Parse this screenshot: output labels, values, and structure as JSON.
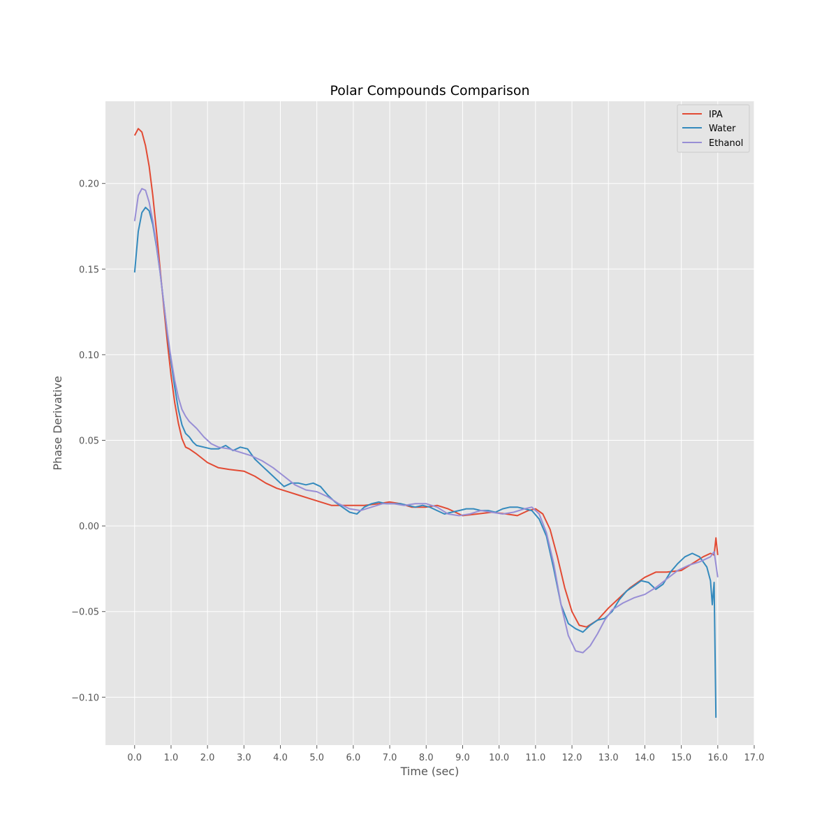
{
  "chart_data": {
    "type": "line",
    "title": "Polar Compounds Comparison",
    "xlabel": "Time (sec)",
    "ylabel": "Phase Derivative",
    "xlim": [
      -0.8,
      17.0
    ],
    "ylim": [
      -0.128,
      0.248
    ],
    "xticks": [
      0,
      1,
      2,
      3,
      4,
      5,
      6,
      7,
      8,
      9,
      10,
      11,
      12,
      13,
      14,
      15,
      16,
      17
    ],
    "xtick_labels": [
      "0.0",
      "1.0",
      "2.0",
      "3.0",
      "4.0",
      "5.0",
      "6.0",
      "7.0",
      "8.0",
      "9.0",
      "10.0",
      "11.0",
      "12.0",
      "13.0",
      "14.0",
      "15.0",
      "16.0",
      "17.0"
    ],
    "yticks": [
      -0.1,
      -0.05,
      0.0,
      0.05,
      0.1,
      0.15,
      0.2
    ],
    "ytick_labels": [
      "−0.10",
      "−0.05",
      "0.00",
      "0.05",
      "0.10",
      "0.15",
      "0.20"
    ],
    "grid": true,
    "legend_position": "top-right",
    "background": "#e5e5e5",
    "series": [
      {
        "name": "IPA",
        "color": "#e24a33",
        "x": [
          0.0,
          0.1,
          0.2,
          0.3,
          0.4,
          0.5,
          0.6,
          0.7,
          0.8,
          0.9,
          1.0,
          1.1,
          1.2,
          1.3,
          1.4,
          1.5,
          1.7,
          2.0,
          2.3,
          2.6,
          3.0,
          3.3,
          3.6,
          3.9,
          4.2,
          4.5,
          4.8,
          5.1,
          5.4,
          5.7,
          6.0,
          6.3,
          6.7,
          7.0,
          7.3,
          7.6,
          8.0,
          8.3,
          8.6,
          9.0,
          9.4,
          9.8,
          10.2,
          10.5,
          10.8,
          11.0,
          11.2,
          11.4,
          11.6,
          11.8,
          12.0,
          12.2,
          12.4,
          12.7,
          13.0,
          13.3,
          13.6,
          14.0,
          14.3,
          14.6,
          15.0,
          15.3,
          15.6,
          15.8,
          15.9,
          15.95,
          16.0
        ],
        "y": [
          0.228,
          0.232,
          0.23,
          0.222,
          0.21,
          0.193,
          0.172,
          0.15,
          0.128,
          0.107,
          0.088,
          0.072,
          0.06,
          0.051,
          0.046,
          0.045,
          0.042,
          0.037,
          0.034,
          0.033,
          0.032,
          0.029,
          0.025,
          0.022,
          0.02,
          0.018,
          0.016,
          0.014,
          0.012,
          0.012,
          0.012,
          0.012,
          0.013,
          0.014,
          0.013,
          0.011,
          0.011,
          0.012,
          0.01,
          0.006,
          0.007,
          0.008,
          0.007,
          0.006,
          0.009,
          0.01,
          0.007,
          -0.002,
          -0.018,
          -0.036,
          -0.05,
          -0.058,
          -0.059,
          -0.055,
          -0.048,
          -0.042,
          -0.036,
          -0.03,
          -0.027,
          -0.027,
          -0.026,
          -0.022,
          -0.018,
          -0.016,
          -0.017,
          -0.007,
          -0.017
        ]
      },
      {
        "name": "Water",
        "color": "#348abd",
        "x": [
          0.0,
          0.1,
          0.2,
          0.3,
          0.4,
          0.5,
          0.6,
          0.7,
          0.8,
          0.9,
          1.0,
          1.1,
          1.2,
          1.3,
          1.4,
          1.5,
          1.6,
          1.7,
          1.9,
          2.1,
          2.3,
          2.5,
          2.7,
          2.9,
          3.1,
          3.3,
          3.5,
          3.7,
          3.9,
          4.1,
          4.3,
          4.5,
          4.7,
          4.9,
          5.1,
          5.3,
          5.5,
          5.7,
          5.9,
          6.1,
          6.3,
          6.5,
          6.7,
          6.9,
          7.1,
          7.3,
          7.5,
          7.7,
          7.9,
          8.1,
          8.3,
          8.5,
          8.7,
          8.9,
          9.1,
          9.3,
          9.5,
          9.7,
          9.9,
          10.1,
          10.3,
          10.5,
          10.7,
          10.9,
          11.1,
          11.3,
          11.5,
          11.7,
          11.9,
          12.1,
          12.3,
          12.5,
          12.7,
          12.9,
          13.1,
          13.3,
          13.5,
          13.7,
          13.9,
          14.1,
          14.3,
          14.5,
          14.7,
          14.9,
          15.1,
          15.3,
          15.5,
          15.7,
          15.8,
          15.85,
          15.9,
          15.95
        ],
        "y": [
          0.148,
          0.172,
          0.183,
          0.186,
          0.184,
          0.176,
          0.163,
          0.148,
          0.13,
          0.112,
          0.096,
          0.081,
          0.068,
          0.059,
          0.054,
          0.052,
          0.049,
          0.047,
          0.046,
          0.045,
          0.045,
          0.047,
          0.044,
          0.046,
          0.045,
          0.039,
          0.035,
          0.031,
          0.027,
          0.023,
          0.025,
          0.025,
          0.024,
          0.025,
          0.023,
          0.018,
          0.014,
          0.011,
          0.008,
          0.007,
          0.011,
          0.013,
          0.014,
          0.013,
          0.013,
          0.013,
          0.012,
          0.011,
          0.012,
          0.011,
          0.009,
          0.007,
          0.008,
          0.009,
          0.01,
          0.01,
          0.009,
          0.009,
          0.008,
          0.01,
          0.011,
          0.011,
          0.01,
          0.009,
          0.004,
          -0.006,
          -0.025,
          -0.046,
          -0.057,
          -0.06,
          -0.062,
          -0.058,
          -0.055,
          -0.054,
          -0.05,
          -0.043,
          -0.038,
          -0.035,
          -0.032,
          -0.033,
          -0.037,
          -0.034,
          -0.027,
          -0.022,
          -0.018,
          -0.016,
          -0.018,
          -0.024,
          -0.032,
          -0.046,
          -0.033,
          -0.112
        ]
      },
      {
        "name": "Ethanol",
        "color": "#988ed5",
        "x": [
          0.0,
          0.1,
          0.2,
          0.3,
          0.4,
          0.5,
          0.6,
          0.7,
          0.8,
          0.9,
          1.0,
          1.1,
          1.2,
          1.3,
          1.4,
          1.5,
          1.6,
          1.7,
          1.9,
          2.1,
          2.3,
          2.6,
          2.9,
          3.2,
          3.5,
          3.8,
          4.1,
          4.4,
          4.7,
          5.0,
          5.3,
          5.6,
          5.9,
          6.2,
          6.5,
          6.8,
          7.1,
          7.4,
          7.7,
          8.0,
          8.3,
          8.6,
          8.9,
          9.2,
          9.5,
          9.8,
          10.1,
          10.4,
          10.7,
          10.9,
          11.1,
          11.3,
          11.5,
          11.7,
          11.9,
          12.1,
          12.3,
          12.5,
          12.7,
          12.9,
          13.1,
          13.4,
          13.7,
          14.0,
          14.3,
          14.6,
          14.9,
          15.2,
          15.5,
          15.8,
          15.9,
          16.0
        ],
        "y": [
          0.178,
          0.193,
          0.197,
          0.196,
          0.189,
          0.178,
          0.164,
          0.148,
          0.13,
          0.113,
          0.098,
          0.085,
          0.075,
          0.068,
          0.064,
          0.061,
          0.059,
          0.057,
          0.052,
          0.048,
          0.046,
          0.045,
          0.043,
          0.041,
          0.038,
          0.034,
          0.029,
          0.024,
          0.021,
          0.02,
          0.017,
          0.013,
          0.01,
          0.009,
          0.011,
          0.013,
          0.013,
          0.012,
          0.013,
          0.013,
          0.011,
          0.007,
          0.006,
          0.007,
          0.009,
          0.008,
          0.007,
          0.008,
          0.01,
          0.011,
          0.007,
          -0.004,
          -0.022,
          -0.046,
          -0.064,
          -0.073,
          -0.074,
          -0.07,
          -0.063,
          -0.055,
          -0.049,
          -0.045,
          -0.042,
          -0.04,
          -0.036,
          -0.031,
          -0.026,
          -0.023,
          -0.021,
          -0.018,
          -0.015,
          -0.03
        ]
      }
    ]
  }
}
